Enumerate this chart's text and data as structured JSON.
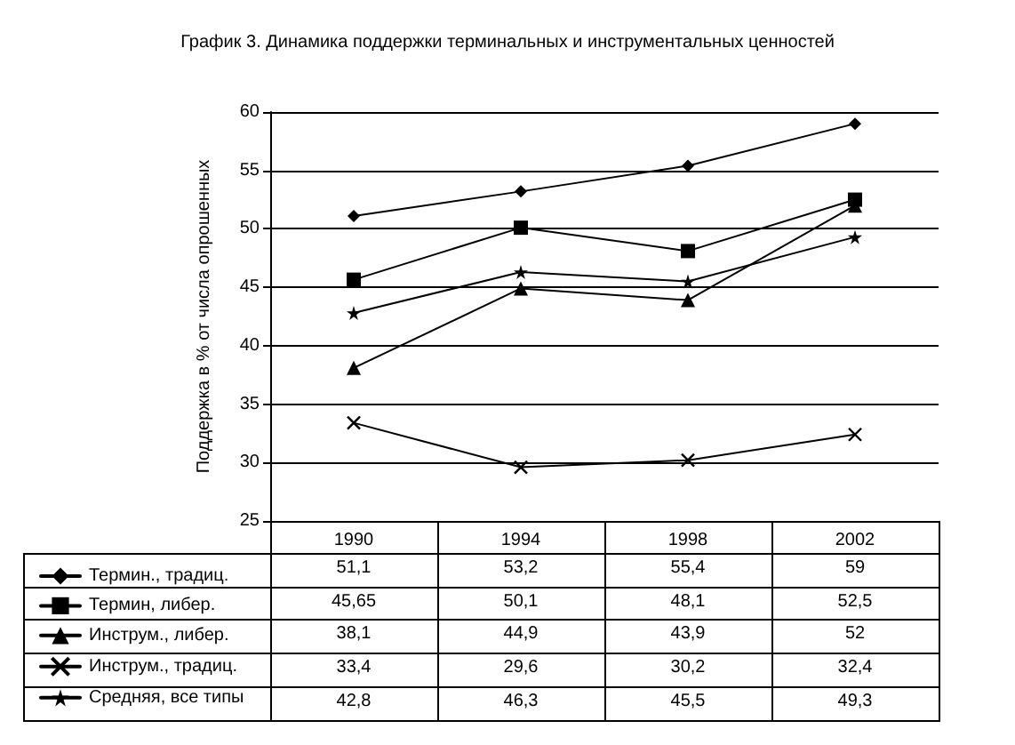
{
  "chart_data": {
    "type": "line",
    "title": "График 3. Динамика поддержки терминальных и инструментальных ценностей",
    "ylabel": "Поддержка в % от числа опрошенных",
    "categories": [
      "1990",
      "1994",
      "1998",
      "2002"
    ],
    "ylim": [
      25,
      60
    ],
    "yticks": [
      25,
      30,
      35,
      40,
      45,
      50,
      55,
      60
    ],
    "grid": "y",
    "legend": "bottom",
    "line_style": "solid",
    "series": [
      {
        "name": "Термин., традиц.",
        "color": "#000000",
        "marker": "diamond",
        "values": [
          51.1,
          53.2,
          55.4,
          59
        ],
        "value_labels": [
          "51,1",
          "53,2",
          "55,4",
          "59"
        ]
      },
      {
        "name": "Термин, либер.",
        "color": "#000000",
        "marker": "square",
        "values": [
          45.65,
          50.1,
          48.1,
          52.5
        ],
        "value_labels": [
          "45,65",
          "50,1",
          "48,1",
          "52,5"
        ]
      },
      {
        "name": "Инструм., либер.",
        "color": "#000000",
        "marker": "triangle",
        "values": [
          38.1,
          44.9,
          43.9,
          52
        ],
        "value_labels": [
          "38,1",
          "44,9",
          "43,9",
          "52"
        ]
      },
      {
        "name": "Инструм., традиц.",
        "color": "#000000",
        "marker": "cross",
        "values": [
          33.4,
          29.6,
          30.2,
          32.4
        ],
        "value_labels": [
          "33,4",
          "29,6",
          "30,2",
          "32,4"
        ]
      },
      {
        "name": "Средняя, все типы",
        "color": "#000000",
        "marker": "star",
        "values": [
          42.8,
          46.3,
          45.5,
          49.3
        ],
        "value_labels": [
          "42,8",
          "46,3",
          "45,5",
          "49,3"
        ]
      }
    ]
  }
}
